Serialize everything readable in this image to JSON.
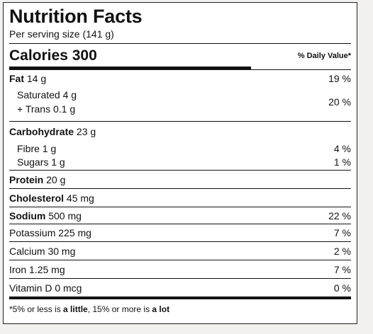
{
  "title": "Nutrition Facts",
  "serving": "Per serving size (141 g)",
  "calories": {
    "label": "Calories",
    "value": "300"
  },
  "daily_value_header": "% Daily Value*",
  "fat": {
    "name": "Fat",
    "amount": "14 g",
    "pct": "19 %"
  },
  "saturated": {
    "name": "Saturated",
    "amount": "4 g"
  },
  "trans": {
    "name": "+ Trans",
    "amount": "0.1 g"
  },
  "sat_trans_pct": "20 %",
  "carbohydrate": {
    "name": "Carbohydrate",
    "amount": "23 g"
  },
  "fibre": {
    "name": "Fibre",
    "amount": "1 g",
    "pct": "4 %"
  },
  "sugars": {
    "name": "Sugars",
    "amount": "1 g",
    "pct": "1 %"
  },
  "protein": {
    "name": "Protein",
    "amount": "20 g"
  },
  "cholesterol": {
    "name": "Cholesterol",
    "amount": "45 mg"
  },
  "sodium": {
    "name": "Sodium",
    "amount": "500 mg",
    "pct": "22 %"
  },
  "potassium": {
    "name": "Potassium",
    "amount": "225 mg",
    "pct": "7 %"
  },
  "calcium": {
    "name": "Calcium",
    "amount": "30 mg",
    "pct": "2 %"
  },
  "iron": {
    "name": "Iron",
    "amount": "1.25 mg",
    "pct": "7 %"
  },
  "vitamin_d": {
    "name": "Vitamin D",
    "amount": "0 mcg",
    "pct": "0 %"
  },
  "footnote": {
    "part1": "*5% or less is ",
    "little": "a little",
    "part2": ", 15% or more is ",
    "lot": "a lot"
  }
}
